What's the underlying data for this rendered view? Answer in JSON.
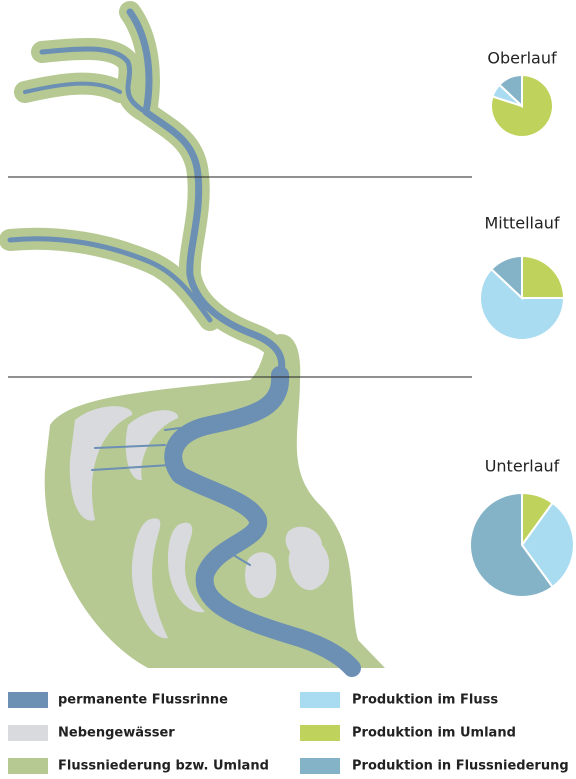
{
  "zones": [
    "Oberlauf",
    "Mittellauf",
    "Unterlauf"
  ],
  "map_legend": [
    {
      "name": "permanente Flussrinne",
      "color": "#6c8fb4"
    },
    {
      "name": "Nebengewässer",
      "color": "#d9dadd"
    },
    {
      "name": "Flussniederung bzw. Umland",
      "color": "#b6c993"
    }
  ],
  "pie_series": [
    {
      "name": "Produktion im Fluss",
      "color": "#a9dcf1"
    },
    {
      "name": "Produktion im Umland",
      "color": "#bfd35c"
    },
    {
      "name": "Produktion in Flussniederung",
      "color": "#84b3c7"
    }
  ],
  "pies": [
    {
      "values": [
        7,
        80,
        13
      ]
    },
    {
      "values": [
        62,
        25,
        13
      ]
    },
    {
      "values": [
        30,
        10,
        60
      ]
    }
  ]
}
